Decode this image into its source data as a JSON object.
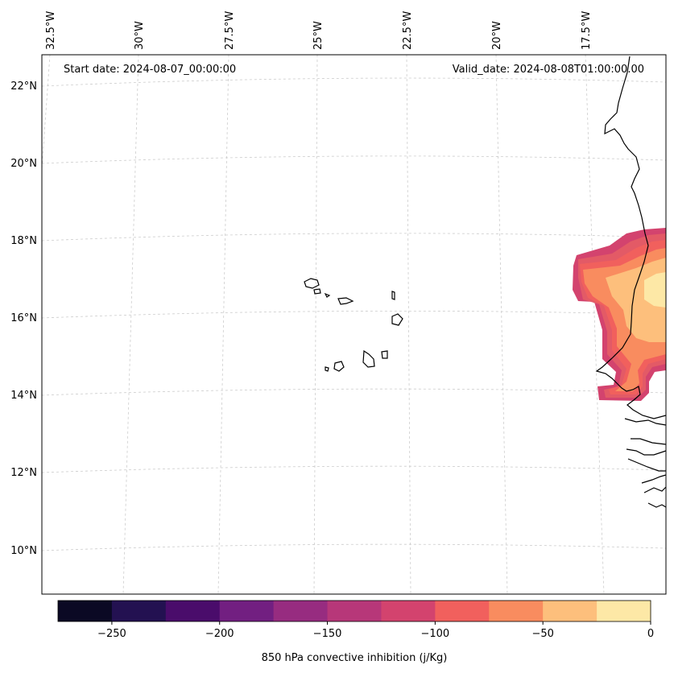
{
  "map": {
    "start_date_label": "Start date: 2024-08-07_00:00:00",
    "valid_date_label": "Valid_date: 2024-08-08T01:00:00.00",
    "lon_labels": [
      "32.5°W",
      "30°W",
      "27.5°W",
      "25°W",
      "22.5°W",
      "20°W",
      "17.5°W"
    ],
    "lat_labels": [
      "22°N",
      "20°N",
      "18°N",
      "16°N",
      "14°N",
      "12°N",
      "10°N"
    ],
    "landmass_names": [
      "cape-verde-islands",
      "west-africa-coast"
    ]
  },
  "colorbar": {
    "title": "850 hPa convective inhibition (j/Kg)",
    "tick_labels": [
      "−250",
      "−200",
      "−150",
      "−100",
      "−50",
      "0"
    ],
    "levels": [
      -275,
      -250,
      -225,
      -200,
      -175,
      -150,
      -125,
      -100,
      -75,
      -50,
      -25,
      0
    ],
    "colors": [
      "#0b0924",
      "#231151",
      "#4a0c6b",
      "#721f81",
      "#972c80",
      "#b73779",
      "#d3436e",
      "#f1605d",
      "#f98c5f",
      "#fdbf7c",
      "#fde8a6"
    ]
  },
  "field_colors": {
    "c_225": "#d3436e",
    "c_250": "#e35a66",
    "c_275": "#f1605d",
    "c_300": "#f98c5f",
    "c_325": "#fdbf7c",
    "c_350": "#fde8a6"
  }
}
